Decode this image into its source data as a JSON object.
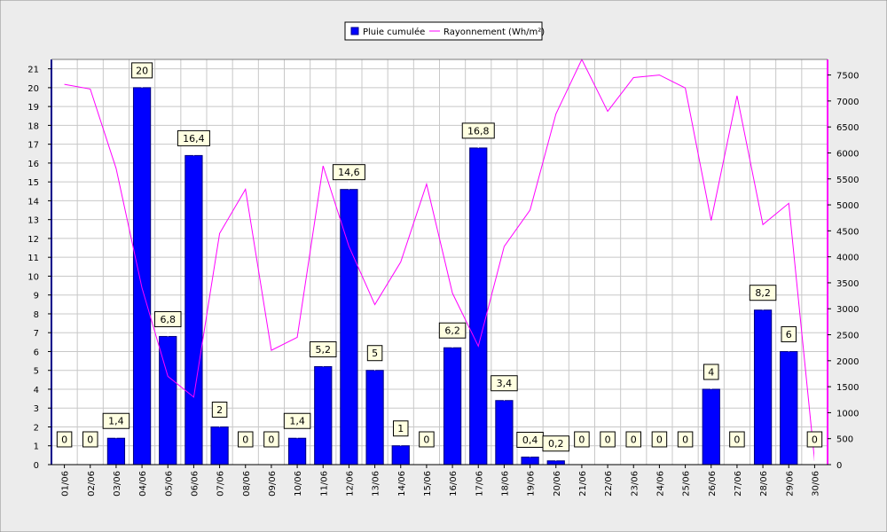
{
  "chart_data": {
    "type": "bar",
    "categories": [
      "01/06",
      "02/06",
      "03/06",
      "04/06",
      "05/06",
      "06/06",
      "07/06",
      "08/06",
      "09/06",
      "10/06",
      "11/06",
      "12/06",
      "13/06",
      "14/06",
      "15/06",
      "16/06",
      "17/06",
      "18/06",
      "19/06",
      "20/06",
      "21/06",
      "22/06",
      "23/06",
      "24/06",
      "25/06",
      "26/06",
      "27/06",
      "28/06",
      "29/06",
      "30/06"
    ],
    "series": [
      {
        "name": "Pluie cumulée",
        "kind": "bar",
        "axis": "left",
        "color": "#0000ff",
        "values": [
          0,
          0,
          1.4,
          20,
          6.8,
          16.4,
          2,
          0,
          0,
          1.4,
          5.2,
          14.6,
          5,
          1,
          0,
          6.2,
          16.8,
          3.4,
          0.4,
          0.2,
          0,
          0,
          0,
          0,
          0,
          4,
          0,
          8.2,
          6,
          0
        ],
        "labels": [
          "0",
          "0",
          "1,4",
          "20",
          "6,8",
          "16,4",
          "2",
          "0",
          "0",
          "1,4",
          "5,2",
          "14,6",
          "5",
          "1",
          "0",
          "6,2",
          "16,8",
          "3,4",
          "0,4",
          "0,2",
          "0",
          "0",
          "0",
          "0",
          "0",
          "4",
          "0",
          "8,2",
          "6",
          "0"
        ]
      },
      {
        "name": "Rayonnement (Wh/m²)",
        "kind": "line",
        "axis": "right",
        "color": "#ff00ff",
        "values": [
          7320,
          7230,
          5700,
          3400,
          1700,
          1300,
          4450,
          5300,
          2200,
          2450,
          5750,
          4200,
          3080,
          3900,
          5400,
          3300,
          2280,
          4200,
          4900,
          6750,
          7800,
          6800,
          7450,
          7500,
          7250,
          4700,
          7100,
          4620,
          5030,
          70
        ]
      }
    ],
    "left_axis": {
      "min": 0,
      "max": 21.5,
      "ticks": [
        0,
        1,
        2,
        3,
        4,
        5,
        6,
        7,
        8,
        9,
        10,
        11,
        12,
        13,
        14,
        15,
        16,
        17,
        18,
        19,
        20,
        21
      ]
    },
    "right_axis": {
      "min": 0,
      "max": 7800,
      "ticks": [
        0,
        500,
        1000,
        1500,
        2000,
        2500,
        3000,
        3500,
        4000,
        4500,
        5000,
        5500,
        6000,
        6500,
        7000,
        7500
      ]
    },
    "grid": true,
    "legend_position": "top"
  },
  "colors": {
    "background": "#ececec",
    "plot_background": "#ffffff",
    "grid": "#c8c8c8",
    "left_axis": "#00008b",
    "right_axis": "#ff00ff",
    "label_box": "#ffffe1"
  }
}
